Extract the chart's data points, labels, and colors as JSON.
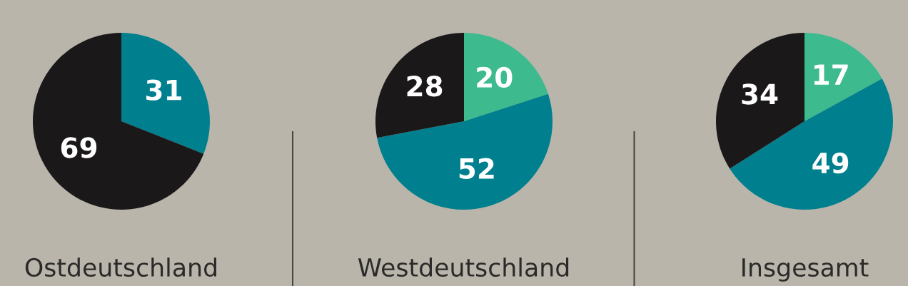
{
  "chart_data": [
    {
      "type": "pie",
      "title": "Ostdeutschland",
      "categories": [
        null,
        null
      ],
      "values": [
        31,
        69
      ],
      "colors": [
        "#00808e",
        "#1b1819"
      ],
      "data_labels": true
    },
    {
      "type": "pie",
      "title": "Westdeutschland",
      "categories": [
        null,
        null,
        null
      ],
      "values": [
        20,
        52,
        28
      ],
      "colors": [
        "#3dba8e",
        "#00808e",
        "#1b1819"
      ],
      "data_labels": true
    },
    {
      "type": "pie",
      "title": "Insgesamt",
      "categories": [
        null,
        null,
        null
      ],
      "values": [
        17,
        49,
        34
      ],
      "colors": [
        "#3dba8e",
        "#00808e",
        "#1b1819"
      ],
      "data_labels": true
    }
  ]
}
